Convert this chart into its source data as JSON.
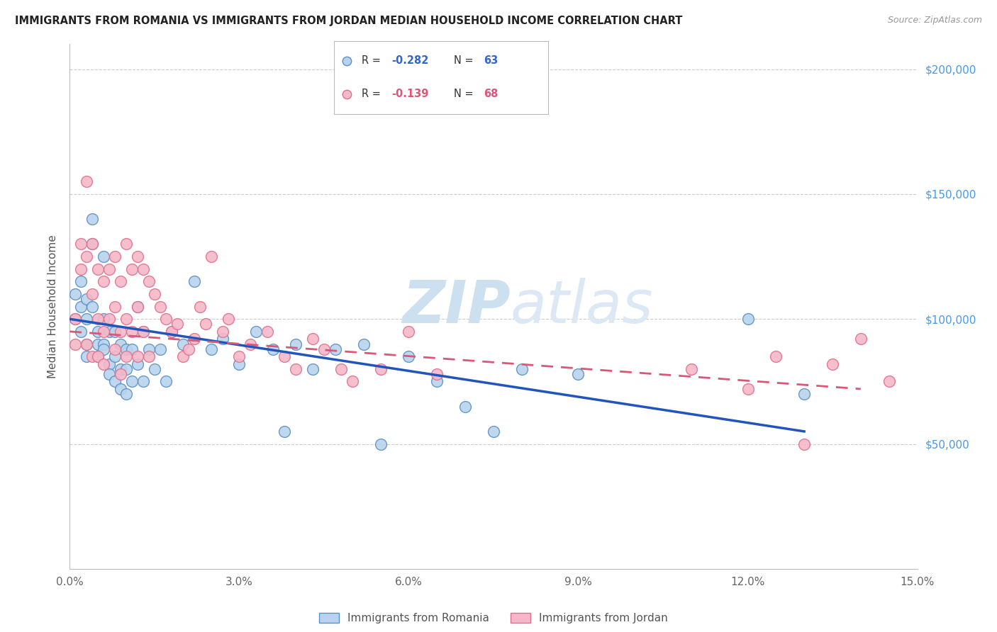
{
  "title": "IMMIGRANTS FROM ROMANIA VS IMMIGRANTS FROM JORDAN MEDIAN HOUSEHOLD INCOME CORRELATION CHART",
  "source": "Source: ZipAtlas.com",
  "ylabel": "Median Household Income",
  "xlim": [
    0,
    0.15
  ],
  "ylim": [
    0,
    210000
  ],
  "xticks": [
    0.0,
    0.03,
    0.06,
    0.09,
    0.12,
    0.15
  ],
  "xtick_labels": [
    "0.0%",
    "3.0%",
    "6.0%",
    "9.0%",
    "12.0%",
    "15.0%"
  ],
  "yticks": [
    50000,
    100000,
    150000,
    200000
  ],
  "ytick_labels": [
    "$50,000",
    "$100,000",
    "$150,000",
    "$200,000"
  ],
  "romania_color": "#b8d4ed",
  "jordan_color": "#f5b8c8",
  "romania_edge": "#5b8fc9",
  "jordan_edge": "#e07090",
  "romania_R": -0.282,
  "romania_N": 63,
  "jordan_R": -0.139,
  "jordan_N": 68,
  "watermark_zip": "ZIP",
  "watermark_atlas": "atlas",
  "romania_line_x0": 0.0,
  "romania_line_y0": 100000,
  "romania_line_x1": 0.13,
  "romania_line_y1": 55000,
  "jordan_line_x0": 0.0,
  "jordan_line_y0": 95000,
  "jordan_line_x1": 0.14,
  "jordan_line_y1": 72000,
  "romania_scatter_x": [
    0.001,
    0.001,
    0.002,
    0.002,
    0.002,
    0.003,
    0.003,
    0.003,
    0.003,
    0.004,
    0.004,
    0.004,
    0.005,
    0.005,
    0.005,
    0.006,
    0.006,
    0.006,
    0.006,
    0.007,
    0.007,
    0.007,
    0.008,
    0.008,
    0.008,
    0.009,
    0.009,
    0.009,
    0.01,
    0.01,
    0.01,
    0.011,
    0.011,
    0.012,
    0.012,
    0.013,
    0.013,
    0.014,
    0.015,
    0.016,
    0.017,
    0.018,
    0.02,
    0.022,
    0.025,
    0.027,
    0.03,
    0.033,
    0.036,
    0.04,
    0.043,
    0.047,
    0.052,
    0.038,
    0.06,
    0.065,
    0.055,
    0.07,
    0.075,
    0.08,
    0.09,
    0.12,
    0.13
  ],
  "romania_scatter_y": [
    100000,
    110000,
    95000,
    105000,
    115000,
    100000,
    108000,
    90000,
    85000,
    140000,
    130000,
    105000,
    95000,
    90000,
    85000,
    125000,
    100000,
    90000,
    88000,
    95000,
    82000,
    78000,
    95000,
    85000,
    75000,
    90000,
    80000,
    72000,
    88000,
    80000,
    70000,
    88000,
    75000,
    105000,
    82000,
    95000,
    75000,
    88000,
    80000,
    88000,
    75000,
    95000,
    90000,
    115000,
    88000,
    92000,
    82000,
    95000,
    88000,
    90000,
    80000,
    88000,
    90000,
    55000,
    85000,
    75000,
    50000,
    65000,
    55000,
    80000,
    78000,
    100000,
    70000
  ],
  "jordan_scatter_x": [
    0.001,
    0.001,
    0.002,
    0.002,
    0.003,
    0.003,
    0.003,
    0.004,
    0.004,
    0.004,
    0.005,
    0.005,
    0.005,
    0.006,
    0.006,
    0.006,
    0.007,
    0.007,
    0.008,
    0.008,
    0.008,
    0.009,
    0.009,
    0.009,
    0.01,
    0.01,
    0.01,
    0.011,
    0.011,
    0.012,
    0.012,
    0.012,
    0.013,
    0.013,
    0.014,
    0.014,
    0.015,
    0.016,
    0.017,
    0.018,
    0.019,
    0.02,
    0.021,
    0.022,
    0.023,
    0.024,
    0.025,
    0.027,
    0.028,
    0.03,
    0.032,
    0.035,
    0.038,
    0.04,
    0.043,
    0.045,
    0.048,
    0.05,
    0.055,
    0.06,
    0.065,
    0.11,
    0.12,
    0.125,
    0.13,
    0.135,
    0.14,
    0.145
  ],
  "jordan_scatter_y": [
    100000,
    90000,
    130000,
    120000,
    155000,
    125000,
    90000,
    130000,
    110000,
    85000,
    120000,
    100000,
    85000,
    115000,
    95000,
    82000,
    120000,
    100000,
    125000,
    105000,
    88000,
    115000,
    95000,
    78000,
    130000,
    100000,
    85000,
    120000,
    95000,
    125000,
    105000,
    85000,
    120000,
    95000,
    115000,
    85000,
    110000,
    105000,
    100000,
    95000,
    98000,
    85000,
    88000,
    92000,
    105000,
    98000,
    125000,
    95000,
    100000,
    85000,
    90000,
    95000,
    85000,
    80000,
    92000,
    88000,
    80000,
    75000,
    80000,
    95000,
    78000,
    80000,
    72000,
    85000,
    50000,
    82000,
    92000,
    75000
  ]
}
